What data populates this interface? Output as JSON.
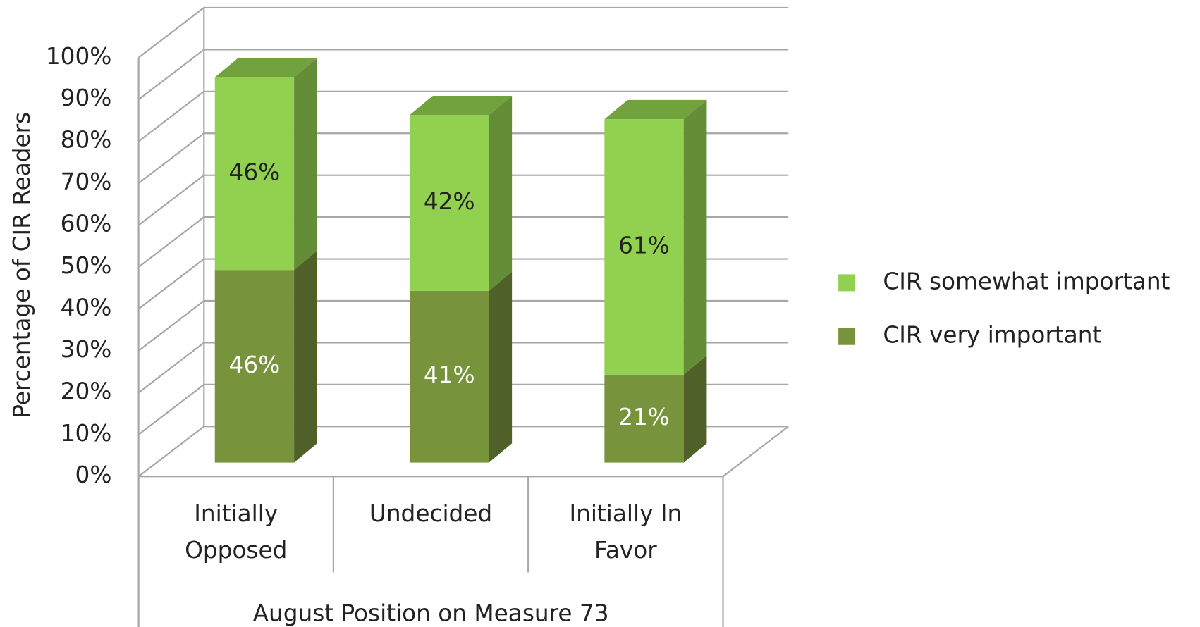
{
  "chart_data": {
    "type": "bar3d_stacked",
    "categories": [
      "Initially Opposed",
      "Undecided",
      "Initially In Favor"
    ],
    "series": [
      {
        "name": "CIR very important",
        "color": "#77933c",
        "values": [
          46,
          41,
          21
        ],
        "value_labels": [
          "46%",
          "41%",
          "21%"
        ]
      },
      {
        "name": "CIR somewhat important",
        "color": "#92d050",
        "values": [
          46,
          42,
          61
        ],
        "value_labels": [
          "46%",
          "42%",
          "61%"
        ]
      }
    ],
    "x_label": "August Position on Measure 73",
    "y_label": "Percentage of CIR Readers",
    "ylim": [
      0,
      100
    ],
    "yticks": [
      {
        "value": 0,
        "label": "0%"
      },
      {
        "value": 10,
        "label": "10%"
      },
      {
        "value": 20,
        "label": "20%"
      },
      {
        "value": 30,
        "label": "30%"
      },
      {
        "value": 40,
        "label": "40%"
      },
      {
        "value": 50,
        "label": "50%"
      },
      {
        "value": 60,
        "label": "60%"
      },
      {
        "value": 70,
        "label": "70%"
      },
      {
        "value": 80,
        "label": "80%"
      },
      {
        "value": 90,
        "label": "90%"
      },
      {
        "value": 100,
        "label": "100%"
      }
    ],
    "grid": true,
    "legend": "right"
  }
}
